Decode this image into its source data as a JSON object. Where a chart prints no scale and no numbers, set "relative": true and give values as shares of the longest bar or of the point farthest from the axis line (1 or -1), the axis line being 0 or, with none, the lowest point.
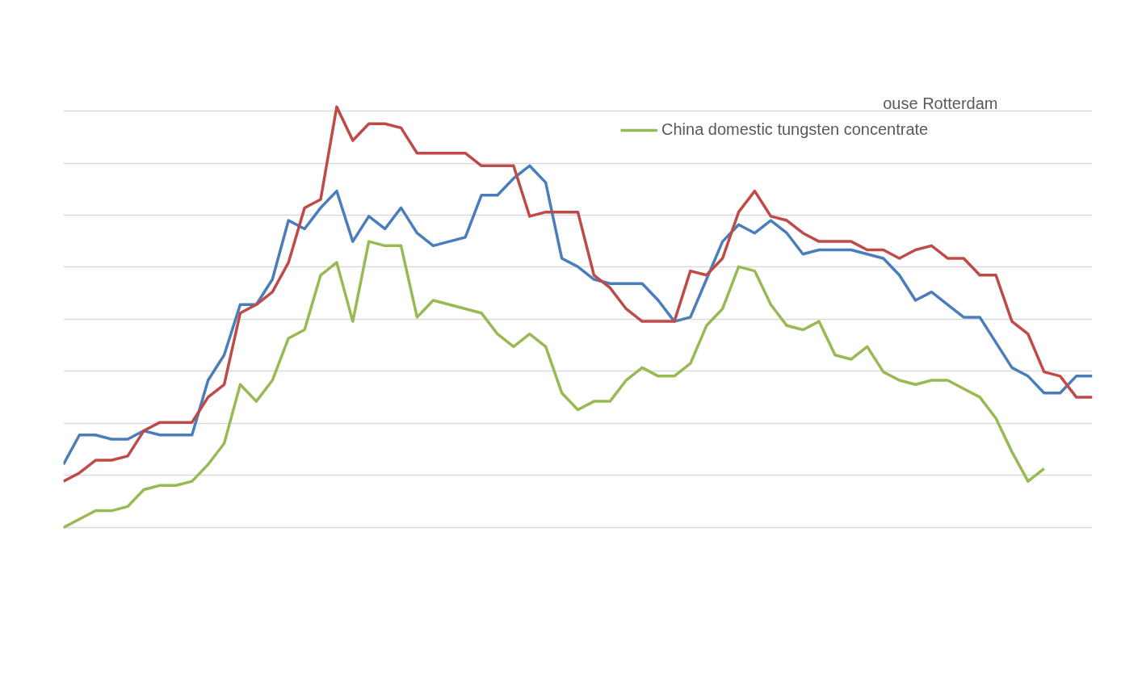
{
  "chart_data": {
    "type": "line",
    "relative": true,
    "grid": "y",
    "legend": "top right",
    "line_style": "solid",
    "marker": "none",
    "categories": [
      null,
      null,
      null,
      null,
      null,
      null,
      null,
      null,
      null,
      null,
      null,
      null,
      null,
      null,
      null,
      null,
      null,
      null,
      null,
      null,
      null,
      null,
      null,
      null,
      null,
      null,
      null,
      null,
      null,
      null,
      null,
      null,
      null,
      null,
      null,
      null,
      null,
      null,
      null,
      null,
      null,
      null,
      null,
      null,
      null,
      null,
      null,
      null,
      null,
      null,
      null,
      null,
      null,
      null,
      null,
      null,
      null,
      null,
      null,
      null,
      null,
      null,
      null,
      null,
      null
    ],
    "annotations": [
      "ouse Rotterdam"
    ],
    "series": [
      {
        "color": "#4a7ebb",
        "values": [
          0.15,
          0.22,
          0.22,
          0.21,
          0.21,
          0.23,
          0.22,
          0.22,
          0.22,
          0.35,
          0.41,
          0.53,
          0.53,
          0.59,
          0.73,
          0.71,
          0.76,
          0.8,
          0.68,
          0.74,
          0.71,
          0.76,
          0.7,
          0.67,
          0.68,
          0.69,
          0.79,
          0.79,
          0.83,
          0.86,
          0.82,
          0.64,
          0.62,
          0.59,
          0.58,
          0.58,
          0.58,
          0.54,
          0.49,
          0.5,
          0.59,
          0.68,
          0.72,
          0.7,
          0.73,
          0.7,
          0.65,
          0.66,
          0.66,
          0.66,
          0.65,
          0.64,
          0.6,
          0.54,
          0.56,
          0.53,
          0.5,
          0.5,
          0.44,
          0.38,
          0.36,
          0.32,
          0.32,
          0.36,
          0.36
        ]
      },
      {
        "color": "#be4b48",
        "values": [
          0.11,
          0.13,
          0.16,
          0.16,
          0.17,
          0.23,
          0.25,
          0.25,
          0.25,
          0.31,
          0.34,
          0.51,
          0.53,
          0.56,
          0.63,
          0.76,
          0.78,
          1.0,
          0.92,
          0.96,
          0.96,
          0.95,
          0.89,
          0.89,
          0.89,
          0.89,
          0.86,
          0.86,
          0.86,
          0.74,
          0.75,
          0.75,
          0.75,
          0.6,
          0.57,
          0.52,
          0.49,
          0.49,
          0.49,
          0.61,
          0.6,
          0.64,
          0.75,
          0.8,
          0.74,
          0.73,
          0.7,
          0.68,
          0.68,
          0.68,
          0.66,
          0.66,
          0.64,
          0.66,
          0.67,
          0.64,
          0.64,
          0.6,
          0.6,
          0.49,
          0.46,
          0.37,
          0.36,
          0.31,
          0.31
        ]
      },
      {
        "name": "China domestic tungsten concentrate",
        "color": "#98b954",
        "values": [
          0,
          0.02,
          0.04,
          0.04,
          0.05,
          0.09,
          0.1,
          0.1,
          0.11,
          0.15,
          0.2,
          0.34,
          0.3,
          0.35,
          0.45,
          0.47,
          0.6,
          0.63,
          0.49,
          0.68,
          0.67,
          0.67,
          0.5,
          0.54,
          0.53,
          0.52,
          0.51,
          0.46,
          0.43,
          0.46,
          0.43,
          0.32,
          0.28,
          0.3,
          0.3,
          0.35,
          0.38,
          0.36,
          0.36,
          0.39,
          0.48,
          0.52,
          0.62,
          0.61,
          0.53,
          0.48,
          0.47,
          0.49,
          0.41,
          0.4,
          0.43,
          0.37,
          0.35,
          0.34,
          0.35,
          0.35,
          0.33,
          0.31,
          0.26,
          0.18,
          0.11,
          0.14,
          null,
          null,
          null
        ]
      }
    ]
  }
}
